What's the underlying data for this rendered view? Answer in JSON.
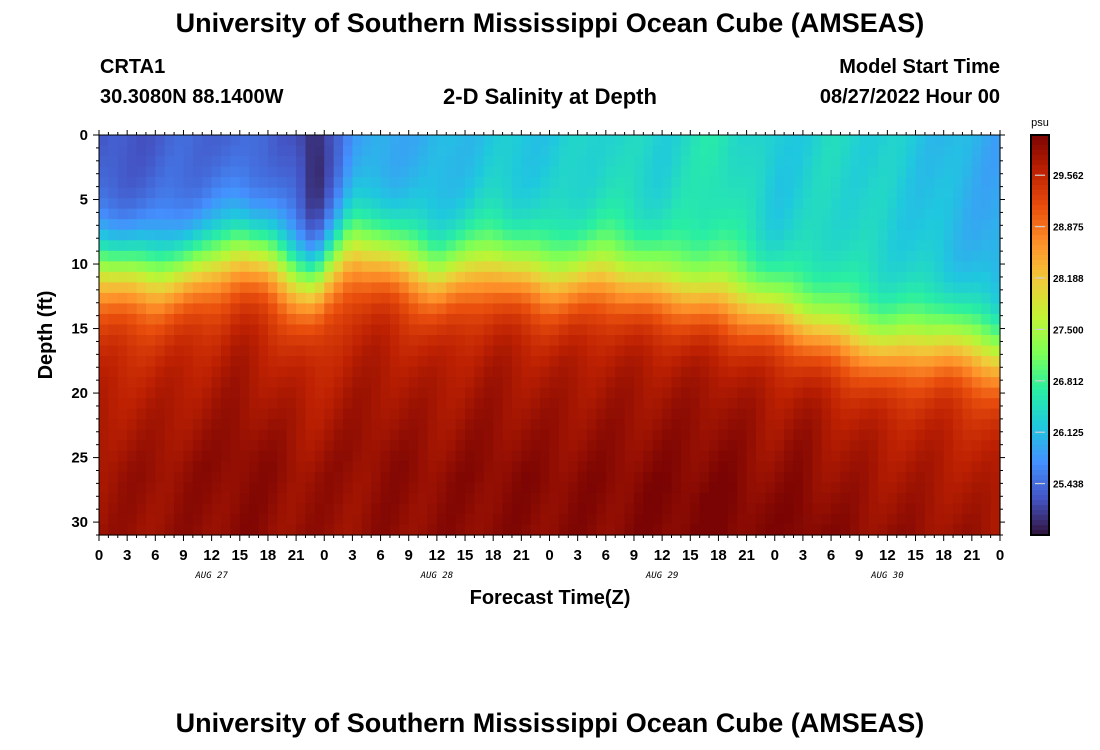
{
  "header": {
    "title": "University of Southern Mississippi Ocean Cube (AMSEAS)",
    "station": "CRTA1",
    "coords": "30.3080N  88.1400W",
    "plot_title": "2-D Salinity at Depth",
    "start_label": "Model Start Time",
    "start_value": "08/27/2022 Hour 00"
  },
  "footer": {
    "title": "University of Southern Mississippi Ocean Cube (AMSEAS)"
  },
  "chart_data": {
    "type": "heatmap",
    "title": "2-D Salinity at Depth",
    "xlabel": "Forecast Time(Z)",
    "ylabel": "Depth (ft)",
    "x_hours": [
      0,
      96
    ],
    "x_tick_step_hours": 3,
    "x_tick_labels": [
      "0",
      "3",
      "6",
      "9",
      "12",
      "15",
      "18",
      "21",
      "0",
      "3",
      "6",
      "9",
      "12",
      "15",
      "18",
      "21",
      "0",
      "3",
      "6",
      "9",
      "12",
      "15",
      "18",
      "21",
      "0",
      "3",
      "6",
      "9",
      "12",
      "15",
      "18",
      "21",
      "0"
    ],
    "day_labels": [
      {
        "label": "AUG 27",
        "hour": 12
      },
      {
        "label": "AUG 28",
        "hour": 36
      },
      {
        "label": "AUG 29",
        "hour": 60
      },
      {
        "label": "AUG 30",
        "hour": 84
      }
    ],
    "y_ticks": [
      0,
      5,
      10,
      15,
      20,
      25,
      30
    ],
    "ylim": [
      0,
      31
    ],
    "colorbar": {
      "unit": "psu",
      "min": 24.75,
      "max": 30.1,
      "tick_labels": [
        "29.562",
        "28.875",
        "28.188",
        "27.500",
        "26.812",
        "26.125",
        "25.438"
      ],
      "colors": [
        "#30123b",
        "#4454c4",
        "#4490fe",
        "#1fc8de",
        "#29efa2",
        "#7dff56",
        "#c1f334",
        "#f1ca3a",
        "#fe922a",
        "#ea4f0d",
        "#be2102",
        "#7a0403"
      ]
    },
    "profiles": {
      "hours": [
        0,
        6,
        12,
        15,
        18,
        21,
        23,
        27,
        30,
        36,
        42,
        48,
        54,
        60,
        66,
        72,
        75,
        78,
        84,
        90,
        96
      ],
      "surface_psu": [
        25.2,
        25.3,
        25.4,
        25.3,
        25.4,
        25.2,
        24.8,
        25.8,
        25.9,
        26.0,
        26.2,
        26.2,
        26.4,
        26.3,
        26.6,
        26.2,
        26.3,
        26.4,
        26.3,
        26.1,
        25.9
      ],
      "halocline_ft": [
        9.8,
        10.6,
        9.6,
        8.4,
        9.2,
        10.7,
        11.0,
        8.4,
        8.8,
        10.8,
        9.8,
        11.0,
        10.6,
        11.5,
        12.5,
        13.3,
        14.3,
        15.0,
        16.3,
        15.6,
        16.8
      ],
      "bottom_psu": [
        29.85,
        29.9,
        29.95,
        30.0,
        29.95,
        29.9,
        29.9,
        29.9,
        29.95,
        29.95,
        30.0,
        30.0,
        30.0,
        30.05,
        30.1,
        30.0,
        30.1,
        30.0,
        29.95,
        29.9,
        29.85
      ]
    }
  }
}
